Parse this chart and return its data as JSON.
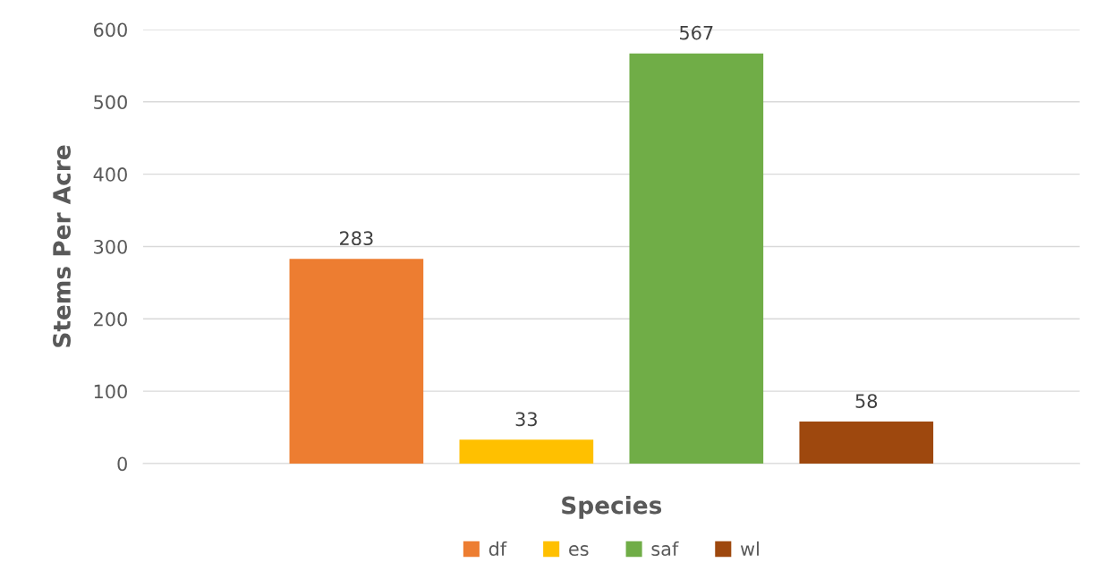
{
  "chart_data": {
    "type": "bar",
    "xlabel": "Species",
    "ylabel": "Stems Per Acre",
    "categories": [
      null
    ],
    "series": [
      {
        "name": "df",
        "color": "#ed7d31",
        "values": [
          283
        ]
      },
      {
        "name": "es",
        "color": "#ffc000",
        "values": [
          33
        ]
      },
      {
        "name": "saf",
        "color": "#70ad47",
        "values": [
          567
        ]
      },
      {
        "name": "wl",
        "color": "#9e480e",
        "values": [
          58
        ]
      }
    ],
    "ylim": [
      0,
      600
    ],
    "yticks": [
      0,
      100,
      200,
      300,
      400,
      500,
      600
    ],
    "grid": "y",
    "legend": "bottom",
    "data_labels": true
  }
}
